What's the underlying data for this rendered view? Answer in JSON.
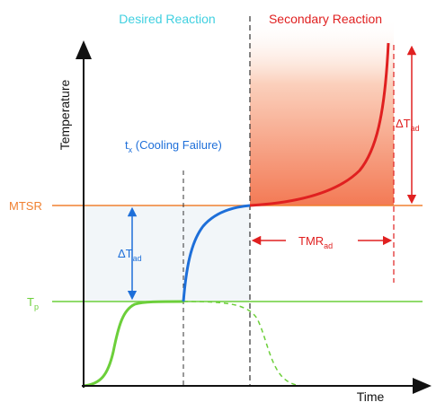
{
  "axes": {
    "y_label": "Temperature",
    "x_label": "Time"
  },
  "regions": {
    "desired": "Desired Reaction",
    "secondary": "Secondary Reaction"
  },
  "levels": {
    "mtsr": "MTSR",
    "tp_main": "T",
    "tp_sub": "p"
  },
  "event": {
    "t_main": "t",
    "t_sub": "x",
    "label": " (Cooling Failure)"
  },
  "annotations": {
    "delta_tad_left": {
      "main": "ΔT",
      "sub": "ad"
    },
    "delta_tad_right": {
      "main": "ΔT",
      "sub": "ad"
    },
    "tmr": {
      "main": "TMR",
      "sub": "ad"
    }
  },
  "colors": {
    "desired": "#40d0e0",
    "secondary": "#e02020",
    "mtsr_line": "#f08030",
    "tp_line": "#6ccf3a",
    "cooling_curve": "#1e6fd9",
    "blue_arrow": "#1e6fd9",
    "red_arrow": "#e02020",
    "axis": "#111111"
  }
}
